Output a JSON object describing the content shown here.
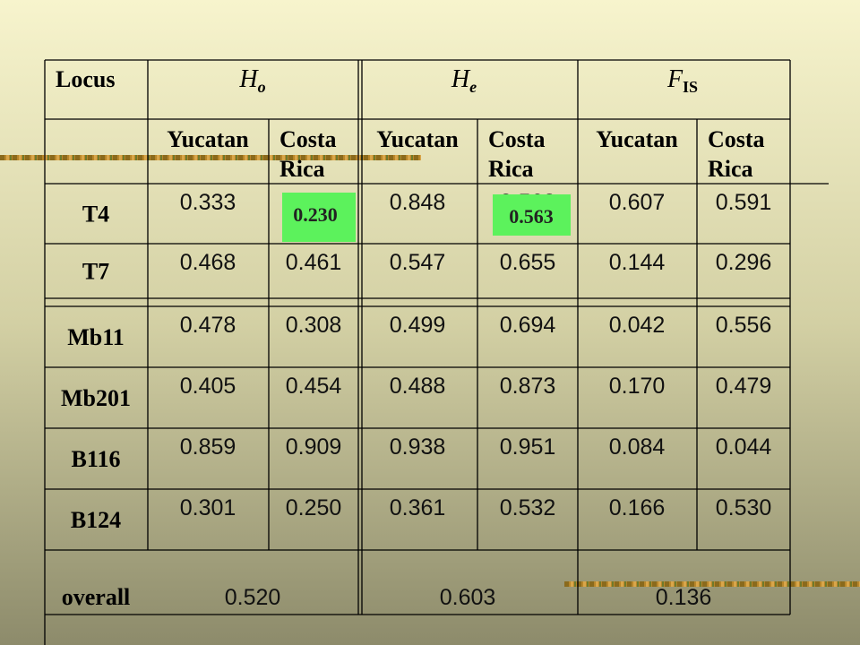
{
  "table": {
    "header": {
      "locus": "Locus",
      "groups": [
        {
          "symbol": "H",
          "sub": "o"
        },
        {
          "symbol": "H",
          "sub": "e"
        },
        {
          "symbol": "F",
          "sub": "IS"
        }
      ],
      "populations": [
        [
          "Yucatan"
        ],
        [
          "Costa",
          "Rica"
        ],
        [
          "Yucatan"
        ],
        [
          "Costa",
          "Rica"
        ],
        [
          "Yucatan"
        ],
        [
          "Costa",
          "Rica"
        ]
      ]
    },
    "rows": [
      {
        "locus": "T4",
        "values": [
          "0.333",
          "0.230",
          "0.848",
          "0.563",
          "0.607",
          "0.591"
        ]
      },
      {
        "locus": "T7",
        "values": [
          "0.468",
          "0.461",
          "0.547",
          "0.655",
          "0.144",
          "0.296"
        ]
      },
      {
        "locus": "Mb11",
        "values": [
          "0.478",
          "0.308",
          "0.499",
          "0.694",
          "0.042",
          "0.556"
        ]
      },
      {
        "locus": "Mb201",
        "values": [
          "0.405",
          "0.454",
          "0.488",
          "0.873",
          "0.170",
          "0.479"
        ]
      },
      {
        "locus": "B116",
        "values": [
          "0.859",
          "0.909",
          "0.938",
          "0.951",
          "0.084",
          "0.044"
        ]
      },
      {
        "locus": "B124",
        "values": [
          "0.301",
          "0.250",
          "0.361",
          "0.532",
          "0.166",
          "0.530"
        ]
      }
    ],
    "overall": {
      "locus": "overall",
      "values": [
        "0.520",
        "0.603",
        "0.136"
      ]
    }
  }
}
